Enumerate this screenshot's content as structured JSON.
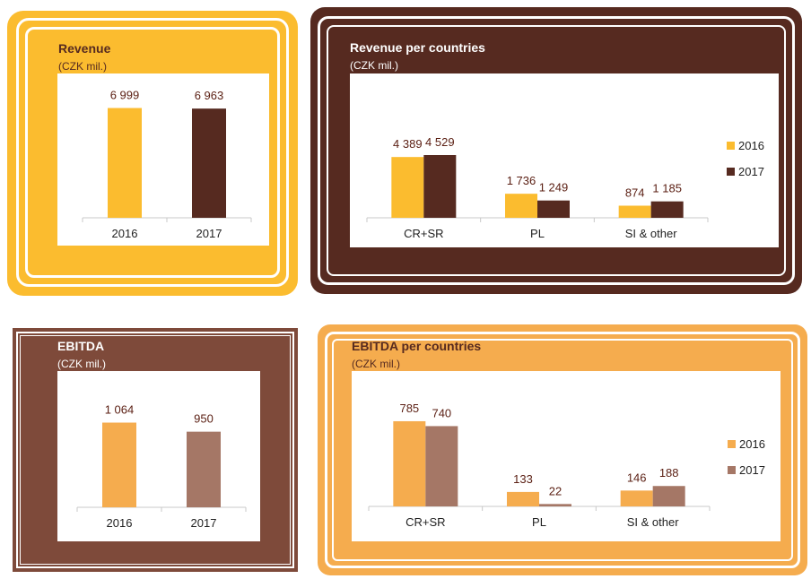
{
  "charts": {
    "revenue": {
      "title": "Revenue",
      "subtitle": "(CZK mil.)"
    },
    "revenue_countries": {
      "title": "Revenue per countries",
      "subtitle": "(CZK mil.)"
    },
    "ebitda": {
      "title": "EBITDA",
      "subtitle": "(CZK mil.)"
    },
    "ebitda_countries": {
      "title": "EBITDA per countries",
      "subtitle": "(CZK mil.)"
    }
  },
  "chart_data": [
    {
      "type": "bar",
      "title": "Revenue",
      "subtitle": "(CZK mil.)",
      "categories": [
        "2016",
        "2017"
      ],
      "values": [
        6999,
        6963
      ],
      "labels": [
        "6 999",
        "6 963"
      ],
      "colors": [
        "#fbbc2f",
        "#562a20"
      ],
      "ylim": [
        0,
        8000
      ]
    },
    {
      "type": "bar",
      "title": "Revenue per countries",
      "subtitle": "(CZK mil.)",
      "categories": [
        "CR+SR",
        "PL",
        "SI & other"
      ],
      "series": [
        {
          "name": "2016",
          "values": [
            4389,
            1736,
            874
          ],
          "labels": [
            "4 389",
            "1 736",
            "874"
          ],
          "color": "#fbbc2f"
        },
        {
          "name": "2017",
          "values": [
            4529,
            1249,
            1185
          ],
          "labels": [
            "4 529",
            "1 249",
            "1 185"
          ],
          "color": "#562a20"
        }
      ],
      "legend": "right",
      "ylim": [
        0,
        5500
      ]
    },
    {
      "type": "bar",
      "title": "EBITDA",
      "subtitle": "(CZK mil.)",
      "categories": [
        "2016",
        "2017"
      ],
      "values": [
        1064,
        950
      ],
      "labels": [
        "1 064",
        "950"
      ],
      "colors": [
        "#f5ac4e",
        "#a57766"
      ],
      "ylim": [
        0,
        1250
      ]
    },
    {
      "type": "bar",
      "title": "EBITDA per countries",
      "subtitle": "(CZK mil.)",
      "categories": [
        "CR+SR",
        "PL",
        "SI & other"
      ],
      "series": [
        {
          "name": "2016",
          "values": [
            785,
            133,
            146
          ],
          "labels": [
            "785",
            "133",
            "146"
          ],
          "color": "#f5ac4e"
        },
        {
          "name": "2017",
          "values": [
            740,
            22,
            188
          ],
          "labels": [
            "740",
            "22",
            "188"
          ],
          "color": "#a57766"
        }
      ],
      "legend": "right",
      "ylim": [
        0,
        950
      ]
    }
  ]
}
